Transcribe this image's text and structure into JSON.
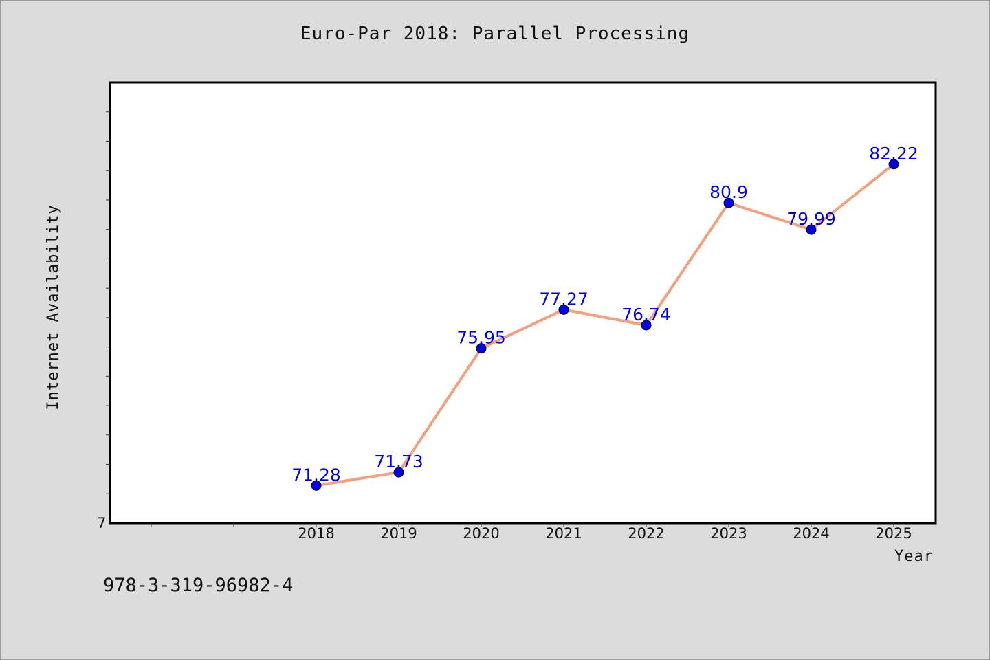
{
  "figure": {
    "title": "Euro-Par 2018: Parallel Processing",
    "footer_text": "978-3-319-96982-4"
  },
  "chart_data": {
    "type": "line",
    "title": "Euro-Par 2018: Parallel Processing",
    "xlabel": "Year",
    "ylabel": "Internet Availability",
    "categories": [
      "2018",
      "2019",
      "2020",
      "2021",
      "2022",
      "2023",
      "2024",
      "2025"
    ],
    "series": [
      {
        "values": [
          71.28,
          71.73,
          75.95,
          77.27,
          76.74,
          80.9,
          79.99,
          82.22
        ],
        "data_labels": [
          "71.28",
          "71.73",
          "75.95",
          "77.27",
          "76.74",
          "80.9",
          "79.99",
          "82.22"
        ]
      }
    ],
    "ylim": [
      70,
      85
    ],
    "y_tick_labels": [
      "7"
    ],
    "grid": false,
    "line_color": "#f4a07e",
    "marker_color": "#0000ee",
    "label_color": "#0000ee",
    "plot_background": "#ffffff",
    "figure_background": "#dcdcdc"
  }
}
